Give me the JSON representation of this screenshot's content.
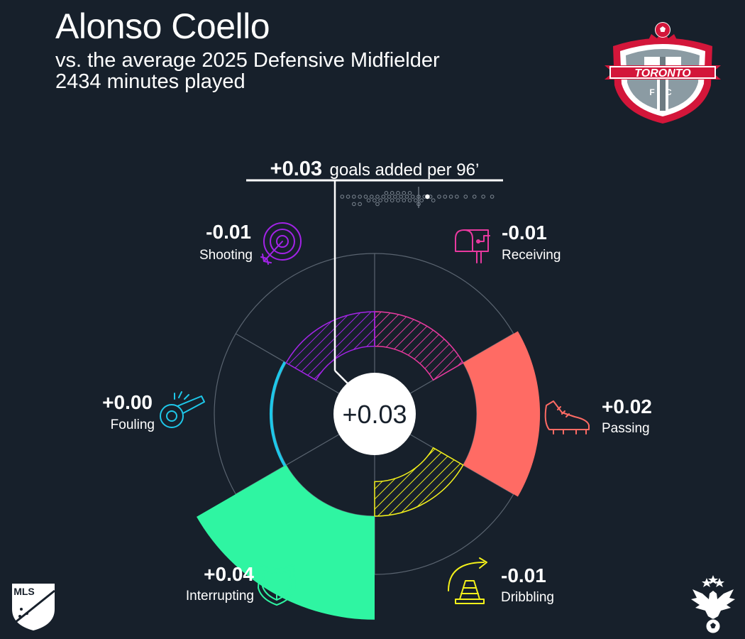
{
  "header": {
    "player_name": "Alonso Coello",
    "comparison": "vs. the average 2025 Defensive Midfielder",
    "minutes": "2434 minutes played"
  },
  "club_logo": {
    "name": "toronto-fc-crest",
    "text": "TORONTO",
    "letters": "F C",
    "colors": {
      "red": "#d3163a",
      "grey": "#8b9ba3"
    }
  },
  "league_logo": {
    "name": "mls-logo",
    "text": "MLS"
  },
  "brand_logo": {
    "name": "eagle-crest-logo"
  },
  "chart_data": {
    "type": "radial-bar",
    "total": {
      "value_label": "+0.03",
      "unit_label": "goals added per 96’",
      "center_label": "+0.03",
      "value": 0.03
    },
    "distribution": {
      "description_hidden": true,
      "others": [
        -0.26,
        -0.24,
        -0.22,
        -0.22,
        -0.2,
        -0.2,
        -0.18,
        -0.17,
        -0.16,
        -0.15,
        -0.14,
        -0.14,
        -0.13,
        -0.12,
        -0.11,
        -0.11,
        -0.1,
        -0.09,
        -0.09,
        -0.08,
        -0.07,
        -0.07,
        -0.06,
        -0.05,
        -0.05,
        -0.04,
        -0.03,
        -0.03,
        -0.02,
        -0.01,
        0.0,
        0.0,
        0.01,
        0.02,
        0.04,
        0.05,
        0.07,
        0.09,
        0.11,
        0.13,
        0.16,
        0.19,
        0.22,
        0.25
      ],
      "player": 0.03,
      "average": 0.0
    },
    "axis": {
      "baseline": 0.0,
      "ring_step": 0.02,
      "rings": 2
    },
    "categories": [
      {
        "name": "Receiving",
        "value_label": "-0.01",
        "value": -0.012,
        "color": "#e8399f",
        "icon": "mailbox-icon"
      },
      {
        "name": "Passing",
        "value_label": "+0.02",
        "value": 0.022,
        "color": "#ff6b64",
        "icon": "soccer-cleat-icon"
      },
      {
        "name": "Dribbling",
        "value_label": "-0.01",
        "value": -0.012,
        "color": "#f4f11a",
        "icon": "traffic-cone-icon"
      },
      {
        "name": "Interrupting",
        "value_label": "+0.04",
        "value": 0.036,
        "color": "#2ff5a2",
        "icon": "shield-icon"
      },
      {
        "name": "Fouling",
        "value_label": "+0.00",
        "value": 0.001,
        "color": "#1ec7e9",
        "icon": "whistle-icon"
      },
      {
        "name": "Shooting",
        "value_label": "-0.01",
        "value": -0.012,
        "color": "#a223e6",
        "icon": "target-arrow-icon"
      }
    ]
  }
}
